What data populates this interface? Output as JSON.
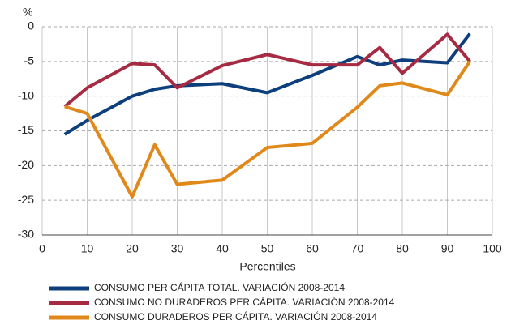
{
  "chart_data": {
    "type": "line",
    "y_unit_label": "%",
    "x_label": "Percentiles",
    "x": [
      5,
      10,
      20,
      25,
      30,
      40,
      50,
      60,
      70,
      75,
      80,
      90,
      95
    ],
    "series": [
      {
        "name": "CONSUMO PER CÁPITA TOTAL. VARIACIÓN 2008-2014",
        "color": "#0d3f7c",
        "values": [
          -15.5,
          -13.5,
          -10,
          -9,
          -8.5,
          -8.2,
          -9.5,
          -7,
          -4.3,
          -5.5,
          -4.8,
          -5.2,
          -1
        ]
      },
      {
        "name": "CONSUMO NO DURADEROS PER CÁPITA. VARIACIÓN 2008-2014",
        "color": "#a62a42",
        "values": [
          -11.5,
          -8.8,
          -5.3,
          -5.5,
          -8.8,
          -5.6,
          -4,
          -5.5,
          -5.5,
          -3,
          -6.7,
          -1.1,
          -5
        ]
      },
      {
        "name": "CONSUMO DURADEROS PER CÁPITA. VARIACIÓN 2008-2014",
        "color": "#e0891a",
        "values": [
          -11.5,
          -12.5,
          -24.5,
          -17,
          -22.7,
          -22.1,
          -17.4,
          -16.8,
          -11.6,
          -8.5,
          -8.1,
          -9.8,
          -5
        ]
      }
    ],
    "xlim": [
      0,
      100
    ],
    "xticks": [
      0,
      10,
      20,
      30,
      40,
      50,
      60,
      70,
      80,
      90,
      100
    ],
    "ylim": [
      -30,
      0
    ],
    "yticks": [
      -30,
      -25,
      -20,
      -15,
      -10,
      -5,
      0
    ],
    "grid": true
  }
}
